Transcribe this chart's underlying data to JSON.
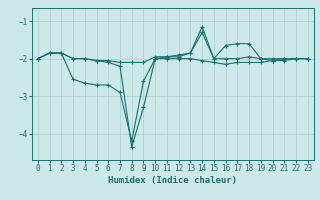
{
  "title": "",
  "xlabel": "Humidex (Indice chaleur)",
  "bg_color": "#cce8e8",
  "grid_color": "#aacece",
  "line_color": "#1a7070",
  "xlim": [
    -0.5,
    23.5
  ],
  "ylim": [
    -4.7,
    -0.65
  ],
  "yticks": [
    -4,
    -3,
    -2,
    -1
  ],
  "xticks": [
    0,
    1,
    2,
    3,
    4,
    5,
    6,
    7,
    8,
    9,
    10,
    11,
    12,
    13,
    14,
    15,
    16,
    17,
    18,
    19,
    20,
    21,
    22,
    23
  ],
  "series": {
    "line1_x": [
      0,
      1,
      2,
      3,
      4,
      5,
      6,
      7,
      8,
      9,
      10,
      11,
      12,
      13,
      14,
      15,
      16,
      17,
      18,
      19,
      20,
      21,
      22,
      23
    ],
    "line1_y": [
      -2.0,
      -1.85,
      -1.85,
      -2.55,
      -2.65,
      -2.7,
      -2.7,
      -2.9,
      -4.2,
      -2.6,
      -2.0,
      -2.0,
      -2.0,
      -2.0,
      -2.05,
      -2.1,
      -2.15,
      -2.1,
      -2.1,
      -2.1,
      -2.05,
      -2.05,
      -2.0,
      -2.0
    ],
    "line2_x": [
      0,
      1,
      2,
      3,
      4,
      5,
      6,
      7,
      8,
      9,
      10,
      11,
      12,
      13,
      14,
      15,
      16,
      17,
      18,
      19,
      20,
      21,
      22,
      23
    ],
    "line2_y": [
      -2.0,
      -1.85,
      -1.85,
      -2.0,
      -2.0,
      -2.05,
      -2.1,
      -2.2,
      -4.35,
      -3.3,
      -2.0,
      -1.95,
      -1.95,
      -1.85,
      -1.3,
      -2.0,
      -2.0,
      -2.0,
      -1.95,
      -2.0,
      -2.05,
      -2.0,
      -2.0,
      -2.0
    ],
    "line3_x": [
      0,
      1,
      2,
      3,
      4,
      5,
      6,
      7,
      8,
      9,
      10,
      11,
      12,
      13,
      14,
      15,
      16,
      17,
      18,
      19,
      20,
      21,
      22,
      23
    ],
    "line3_y": [
      -2.0,
      -1.85,
      -1.85,
      -2.0,
      -2.0,
      -2.05,
      -2.05,
      -2.1,
      -2.1,
      -2.1,
      -1.95,
      -1.95,
      -1.9,
      -1.85,
      -1.15,
      -2.0,
      -1.65,
      -1.6,
      -1.6,
      -2.0,
      -2.0,
      -2.0,
      -2.0,
      -2.0
    ]
  }
}
